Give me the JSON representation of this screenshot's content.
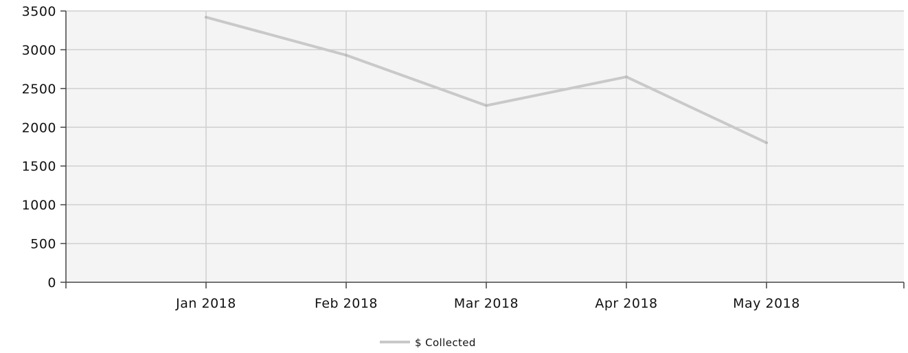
{
  "chart_data": {
    "type": "line",
    "categories": [
      "Jan 2018",
      "Feb 2018",
      "Mar 2018",
      "Apr 2018",
      "May 2018"
    ],
    "series": [
      {
        "name": "$ Collected",
        "values": [
          3420,
          2930,
          2280,
          2650,
          1800
        ]
      }
    ],
    "title": "",
    "xlabel": "",
    "ylabel": "",
    "ylim": [
      0,
      3500
    ],
    "yticks": [
      0,
      500,
      1000,
      1500,
      2000,
      2500,
      3000,
      3500
    ],
    "grid": true,
    "legend_position": "bottom-center",
    "colors": {
      "line": "#c9c9c9",
      "grid": "#cfcfcf",
      "axis": "#444444",
      "background": "#f4f4f4"
    }
  }
}
